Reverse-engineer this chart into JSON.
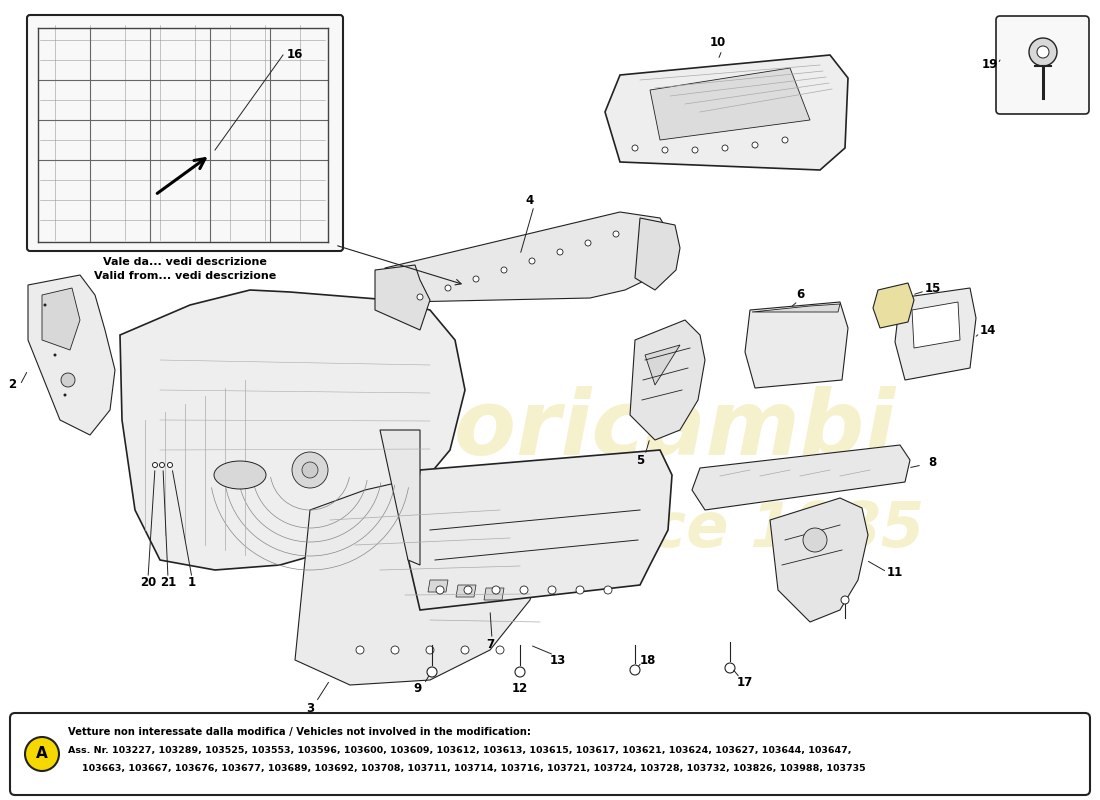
{
  "bg": "#ffffff",
  "watermark_color": "#e8d870",
  "watermark_alpha": 0.35,
  "footer_circle_label": "A",
  "footer_circle_color": "#f5d800",
  "footer_title": "Vetture non interessate dalla modifica / Vehicles not involved in the modification:",
  "footer_ass": "Ass. Nr. 103227, 103289, 103525, 103553, 103596, 103600, 103609, 103612, 103613, 103615, 103617, 103621, 103624, 103627, 103644, 103647,",
  "footer_line2": "103663, 103667, 103676, 103677, 103689, 103692, 103708, 103711, 103714, 103716, 103721, 103724, 103728, 103732, 103826, 103988, 103735",
  "inset_caption_it": "Vale da... vedi descrizione",
  "inset_caption_en": "Valid from... vedi descrizione"
}
